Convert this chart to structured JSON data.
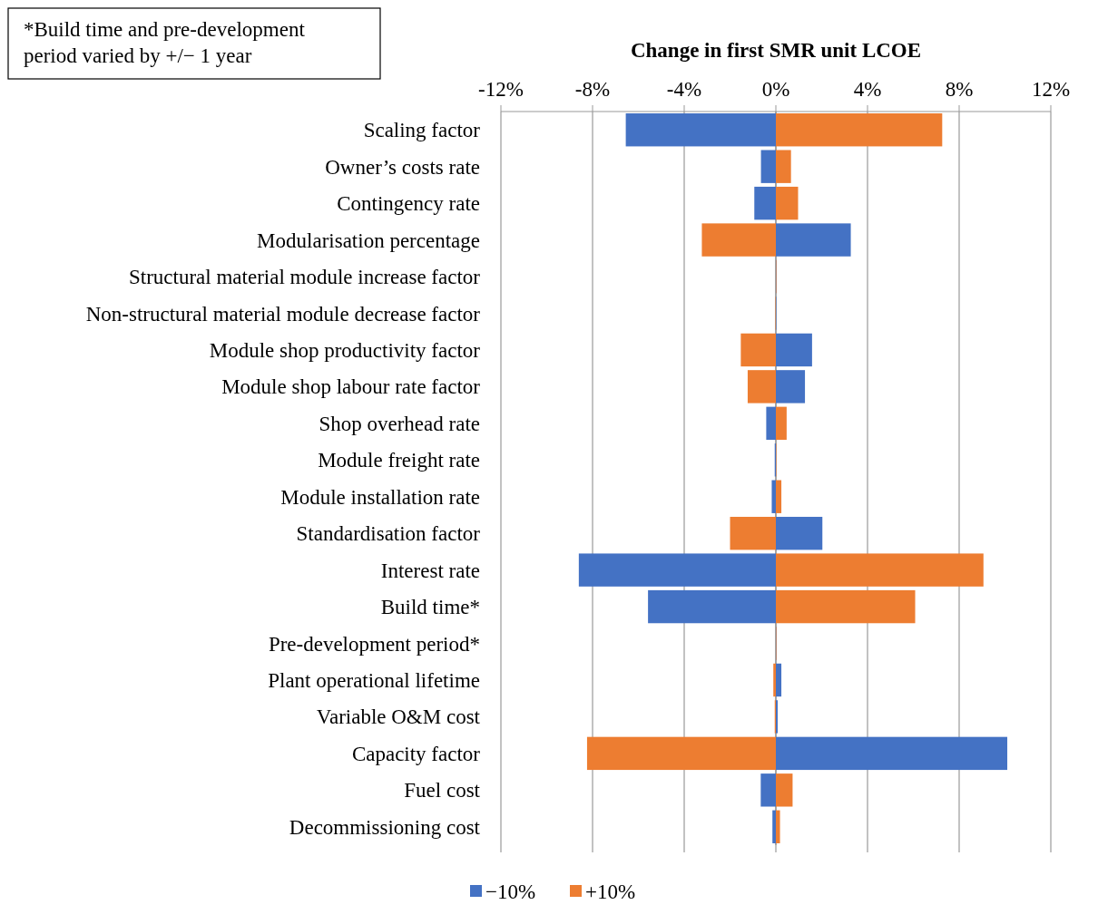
{
  "chart_data": {
    "type": "bar",
    "orientation": "horizontal",
    "title": "Change in first SMR unit LCOE",
    "categories": [
      "Scaling factor",
      "Owner’s costs rate",
      "Contingency rate",
      "Modularisation percentage",
      "Structural material module increase factor",
      "Non-structural material module decrease factor",
      "Module shop productivity factor",
      "Module shop labour rate factor",
      "Shop overhead rate",
      "Module freight rate",
      "Module installation rate",
      "Standardisation factor",
      "Interest rate",
      "Build time*",
      "Pre-development period*",
      "Plant operational lifetime",
      "Variable O&M cost",
      "Capacity factor",
      "Fuel cost",
      "Decommissioning cost"
    ],
    "series": [
      {
        "name": "−10%",
        "color": "#4472c4",
        "values": [
          -6.55,
          -0.65,
          -0.94,
          3.27,
          0,
          0,
          1.58,
          1.27,
          -0.42,
          -0.05,
          -0.18,
          2.03,
          -8.6,
          -5.58,
          0,
          0.24,
          0.08,
          10.1,
          -0.66,
          -0.15
        ]
      },
      {
        "name": "+10%",
        "color": "#ed7d31",
        "values": [
          7.26,
          0.66,
          0.97,
          -3.23,
          0,
          -0.02,
          -1.53,
          -1.23,
          0.47,
          0.02,
          0.24,
          -2.0,
          9.06,
          6.08,
          0.02,
          -0.11,
          -0.05,
          -8.24,
          0.73,
          0.18
        ]
      }
    ],
    "xlim": [
      -12,
      12
    ],
    "xticks": [
      {
        "value": -12,
        "label": "-12%"
      },
      {
        "value": -8,
        "label": "-8%"
      },
      {
        "value": -4,
        "label": "-4%"
      },
      {
        "value": 0,
        "label": "0%"
      },
      {
        "value": 4,
        "label": "4%"
      },
      {
        "value": 8,
        "label": "8%"
      },
      {
        "value": 12,
        "label": "12%"
      }
    ],
    "grid": "x",
    "legend": "bottom",
    "stacked": true,
    "annotations": [
      "*Build time and pre-development period varied by +/− 1 year"
    ]
  }
}
